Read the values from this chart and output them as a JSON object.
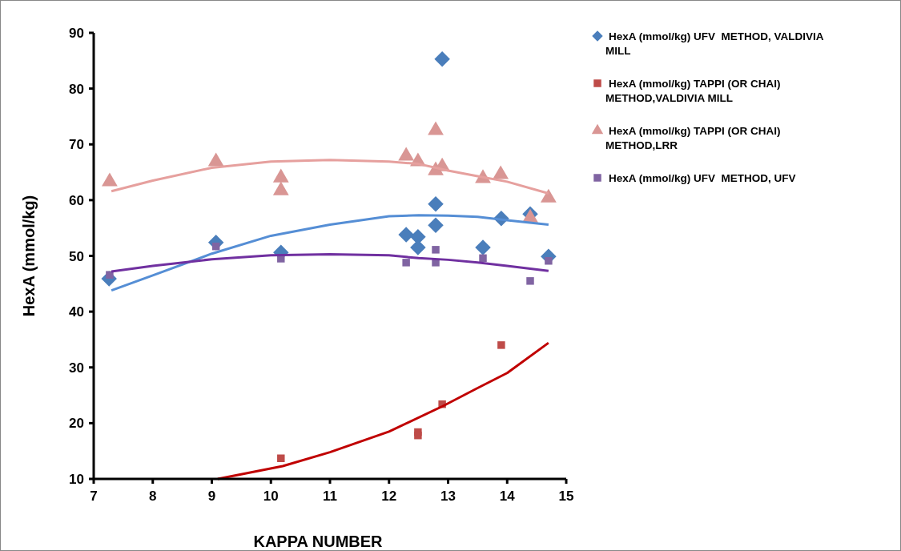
{
  "chart_data": {
    "type": "scatter",
    "xlabel": "KAPPA NUMBER",
    "ylabel": "HexA (mmol/kg)",
    "xlim": [
      7,
      15
    ],
    "xticks": [
      7,
      8,
      9,
      10,
      11,
      12,
      13,
      14,
      15
    ],
    "ylim": [
      10,
      90
    ],
    "yticks": [
      10,
      20,
      30,
      40,
      50,
      60,
      70,
      80,
      90
    ],
    "legend": "right",
    "grid": false,
    "series": [
      {
        "name": "HexA (mmol/kg) UFV  METHOD, VALDIVIA MILL",
        "color": "#4a7ebb",
        "marker": "diamond",
        "x": [
          7.26,
          9.07,
          10.17,
          12.29,
          12.49,
          12.49,
          12.79,
          12.79,
          12.9,
          13.59,
          13.9,
          14.39,
          14.7
        ],
        "values": [
          45.9,
          52.4,
          50.6,
          53.8,
          53.4,
          51.5,
          55.5,
          59.3,
          85.3,
          51.5,
          56.7,
          57.5,
          49.9
        ]
      },
      {
        "name": "HexA (mmol/kg) TAPPI (OR CHAI) METHOD,VALDIVIA MILL",
        "color": "#be4b48",
        "marker": "square",
        "x": [
          10.17,
          12.49,
          12.49,
          12.9,
          13.9
        ],
        "values": [
          13.7,
          18.4,
          17.8,
          23.4,
          34.0
        ]
      },
      {
        "name": "HexA (mmol/kg) TAPPI (OR CHAI) METHOD,LRR",
        "color": "#d99694",
        "marker": "triangle",
        "x": [
          7.27,
          9.07,
          10.17,
          10.17,
          12.29,
          12.49,
          12.79,
          12.79,
          12.9,
          13.59,
          13.89,
          14.39,
          14.7
        ],
        "values": [
          63.3,
          66.9,
          64.0,
          61.7,
          67.9,
          66.9,
          72.5,
          65.3,
          66.0,
          63.9,
          64.6,
          56.8,
          60.4
        ]
      },
      {
        "name": "HexA (mmol/kg) UFV  METHOD, UFV",
        "color": "#8064a2",
        "marker": "square",
        "x": [
          7.27,
          9.07,
          10.17,
          12.29,
          12.79,
          12.79,
          13.59,
          14.39,
          14.7
        ],
        "values": [
          46.6,
          51.7,
          49.5,
          48.8,
          51.1,
          48.8,
          49.6,
          45.5,
          49.1
        ]
      },
      {
        "type": "line",
        "color": "#558ed5",
        "x": [
          7.3,
          8,
          9,
          10,
          11,
          12,
          12.5,
          13,
          13.5,
          14,
          14.7
        ],
        "values": [
          43.8,
          46.5,
          50.4,
          53.6,
          55.6,
          57.1,
          57.3,
          57.2,
          57.0,
          56.4,
          55.6
        ]
      },
      {
        "type": "line",
        "color": "#c00000",
        "x": [
          9.1,
          10.2,
          11,
          12,
          12.9,
          13.5,
          14,
          14.7
        ],
        "values": [
          10,
          12.3,
          14.8,
          18.5,
          23,
          26.3,
          29,
          34.4
        ]
      },
      {
        "type": "line",
        "color": "#e6a09e",
        "x": [
          7.3,
          8,
          9,
          10,
          11,
          12,
          12.5,
          13,
          13.5,
          14,
          14.7
        ],
        "values": [
          61.6,
          63.5,
          65.8,
          66.9,
          67.2,
          66.9,
          66.5,
          65.3,
          64.3,
          63.3,
          61.2
        ]
      },
      {
        "type": "line",
        "color": "#7030a0",
        "x": [
          7.3,
          8,
          9,
          10,
          11,
          12,
          12.5,
          13,
          13.5,
          14,
          14.7
        ],
        "values": [
          47.2,
          48.2,
          49.4,
          50.1,
          50.3,
          50.1,
          49.6,
          49.3,
          48.8,
          48.2,
          47.3
        ]
      }
    ]
  }
}
